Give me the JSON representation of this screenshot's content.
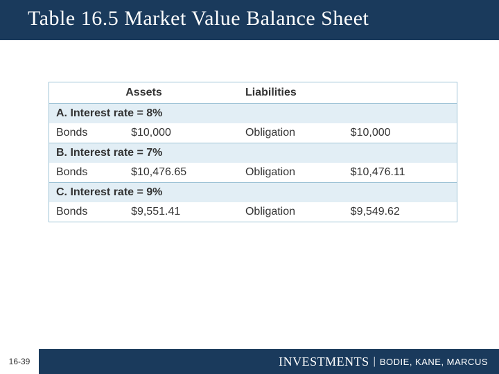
{
  "title": "Table 16.5 Market Value Balance Sheet",
  "page_number": "16-39",
  "footer": {
    "book": "INVESTMENTS",
    "separator": "|",
    "authors": "BODIE, KANE, MARCUS"
  },
  "colors": {
    "header_bg": "#1a3a5c",
    "section_bg": "#e2eef5",
    "border": "#9ec3d6",
    "text": "#333333",
    "title_text": "#ffffff"
  },
  "table": {
    "headers": {
      "assets": "Assets",
      "liabilities": "Liabilities"
    },
    "sections": [
      {
        "heading": "A. Interest rate = 8%",
        "asset_label": "Bonds",
        "asset_value": "$10,000",
        "liab_label": "Obligation",
        "liab_value": "$10,000"
      },
      {
        "heading": "B. Interest rate = 7%",
        "asset_label": "Bonds",
        "asset_value": "$10,476.65",
        "liab_label": "Obligation",
        "liab_value": "$10,476.11"
      },
      {
        "heading": "C. Interest rate = 9%",
        "asset_label": "Bonds",
        "asset_value": "$9,551.41",
        "liab_label": "Obligation",
        "liab_value": "$9,549.62"
      }
    ]
  }
}
